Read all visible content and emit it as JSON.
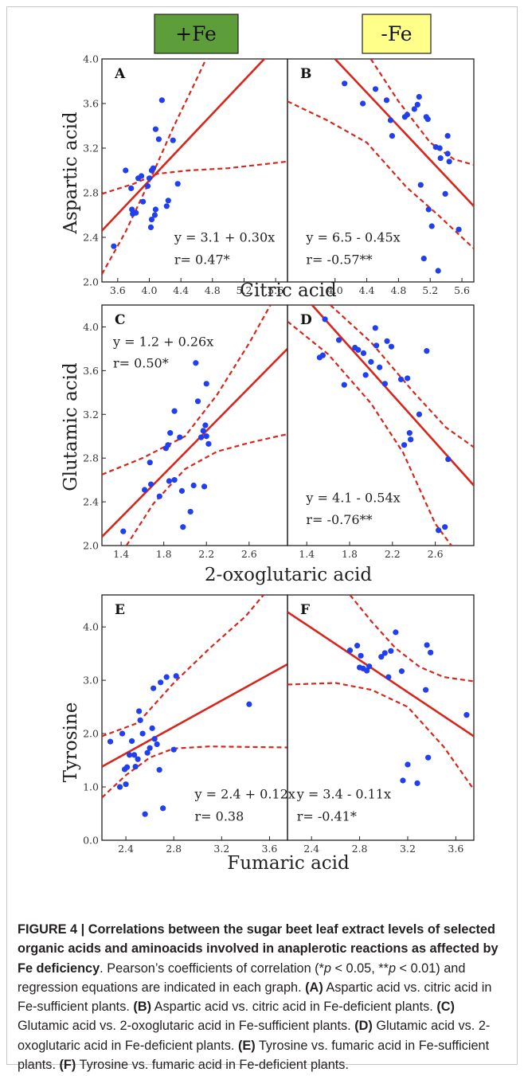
{
  "header": {
    "plus_fe": {
      "label": "+Fe",
      "color": "#5e9e3a"
    },
    "minus_fe": {
      "label": "-Fe",
      "color": "#ffff8a"
    }
  },
  "colors": {
    "points": "#1f3ff0",
    "fit": "#d9261c",
    "ci": "#d9261c"
  },
  "chart_data": [
    {
      "id": "A",
      "type": "scatter",
      "panel_label": "A",
      "xlabel": "Citric acid",
      "ylabel": "Aspartic acid",
      "xlim": [
        3.4,
        5.75
      ],
      "ylim": [
        2.0,
        4.0
      ],
      "xticks": [
        "3.6",
        "4.0",
        "4.4",
        "4.8",
        "5.2",
        "5.6"
      ],
      "yticks": [
        "2.0",
        "2.4",
        "2.8",
        "3.2",
        "3.6",
        "4.0"
      ],
      "equation": "y = 3.1 + 0.30x",
      "r_text": "r= 0.47*",
      "fit_line": [
        [
          3.4,
          2.46
        ],
        [
          5.75,
          4.22
        ]
      ],
      "ci_upper": [
        [
          3.4,
          2.07
        ],
        [
          3.7,
          2.45
        ],
        [
          4.0,
          2.9
        ],
        [
          4.3,
          3.38
        ],
        [
          4.6,
          3.82
        ],
        [
          4.85,
          4.2
        ]
      ],
      "ci_lower": [
        [
          3.4,
          2.79
        ],
        [
          3.8,
          2.88
        ],
        [
          4.1,
          2.97
        ],
        [
          4.5,
          3.0
        ],
        [
          5.0,
          3.02
        ],
        [
          5.75,
          3.08
        ]
      ],
      "points": [
        [
          3.55,
          2.32
        ],
        [
          3.7,
          3.0
        ],
        [
          3.77,
          2.84
        ],
        [
          3.78,
          2.65
        ],
        [
          3.79,
          2.61
        ],
        [
          3.83,
          2.62
        ],
        [
          3.86,
          2.93
        ],
        [
          3.9,
          2.95
        ],
        [
          3.92,
          2.72
        ],
        [
          3.98,
          2.86
        ],
        [
          4.0,
          2.93
        ],
        [
          4.02,
          2.49
        ],
        [
          4.03,
          2.56
        ],
        [
          4.03,
          3.0
        ],
        [
          4.05,
          3.02
        ],
        [
          4.07,
          2.6
        ],
        [
          4.08,
          2.65
        ],
        [
          4.08,
          3.37
        ],
        [
          4.12,
          3.28
        ],
        [
          4.16,
          3.63
        ],
        [
          4.22,
          2.68
        ],
        [
          4.24,
          2.73
        ],
        [
          4.3,
          3.27
        ],
        [
          4.36,
          2.88
        ]
      ]
    },
    {
      "id": "B",
      "type": "scatter",
      "panel_label": "B",
      "xlabel": "",
      "ylabel": "",
      "xlim": [
        3.4,
        5.75
      ],
      "ylim": [
        2.0,
        4.0
      ],
      "xticks": [
        "4.0",
        "4.4",
        "4.8",
        "5.2",
        "5.6"
      ],
      "yticks": [],
      "equation": "y = 6.5 - 0.45x",
      "r_text": "r= -0.57**",
      "fit_line": [
        [
          4.0,
          4.0
        ],
        [
          5.75,
          2.68
        ]
      ],
      "ci_upper": [
        [
          4.45,
          4.0
        ],
        [
          4.8,
          3.62
        ],
        [
          5.2,
          3.25
        ],
        [
          5.5,
          3.1
        ],
        [
          5.75,
          3.05
        ]
      ],
      "ci_lower": [
        [
          3.4,
          3.62
        ],
        [
          3.9,
          3.45
        ],
        [
          4.4,
          3.25
        ],
        [
          4.9,
          2.85
        ],
        [
          5.3,
          2.6
        ],
        [
          5.75,
          2.3
        ]
      ],
      "points": [
        [
          4.12,
          3.78
        ],
        [
          4.35,
          3.6
        ],
        [
          4.51,
          3.73
        ],
        [
          4.65,
          3.63
        ],
        [
          4.7,
          3.45
        ],
        [
          4.72,
          3.31
        ],
        [
          4.88,
          3.48
        ],
        [
          4.91,
          3.5
        ],
        [
          5.0,
          3.55
        ],
        [
          5.04,
          3.59
        ],
        [
          5.06,
          3.66
        ],
        [
          5.08,
          2.87
        ],
        [
          5.12,
          2.21
        ],
        [
          5.15,
          3.48
        ],
        [
          5.17,
          3.46
        ],
        [
          5.18,
          2.65
        ],
        [
          5.22,
          2.5
        ],
        [
          5.27,
          3.21
        ],
        [
          5.3,
          2.1
        ],
        [
          5.32,
          3.2
        ],
        [
          5.33,
          3.11
        ],
        [
          5.39,
          2.79
        ],
        [
          5.42,
          3.31
        ],
        [
          5.42,
          3.15
        ],
        [
          5.44,
          3.08
        ],
        [
          5.56,
          2.47
        ]
      ]
    },
    {
      "id": "C",
      "type": "scatter",
      "panel_label": "C",
      "xlabel": "2-oxoglutaric acid",
      "ylabel": "Glutamic acid",
      "xlim": [
        1.22,
        2.96
      ],
      "ylim": [
        2.0,
        4.2
      ],
      "xticks": [
        "1.4",
        "1.8",
        "2.2",
        "2.6"
      ],
      "yticks": [
        "2.0",
        "2.4",
        "2.8",
        "3.2",
        "3.6",
        "4.0"
      ],
      "equation": "y = 1.2 + 0.26x",
      "r_text": "r= 0.50*",
      "fit_line": [
        [
          1.22,
          2.08
        ],
        [
          2.96,
          3.8
        ]
      ],
      "ci_upper": [
        [
          1.22,
          2.65
        ],
        [
          1.6,
          2.8
        ],
        [
          2.0,
          3.0
        ],
        [
          2.3,
          3.38
        ],
        [
          2.6,
          3.85
        ],
        [
          2.8,
          4.2
        ]
      ],
      "ci_lower": [
        [
          1.45,
          2.0
        ],
        [
          1.7,
          2.38
        ],
        [
          2.0,
          2.7
        ],
        [
          2.3,
          2.86
        ],
        [
          2.6,
          2.94
        ],
        [
          2.96,
          3.02
        ]
      ],
      "points": [
        [
          1.42,
          2.13
        ],
        [
          1.62,
          2.51
        ],
        [
          1.67,
          2.76
        ],
        [
          1.68,
          2.56
        ],
        [
          1.76,
          2.45
        ],
        [
          1.82,
          2.89
        ],
        [
          1.84,
          2.92
        ],
        [
          1.85,
          2.59
        ],
        [
          1.86,
          3.03
        ],
        [
          1.9,
          2.6
        ],
        [
          1.9,
          3.23
        ],
        [
          1.95,
          2.99
        ],
        [
          1.97,
          2.5
        ],
        [
          1.98,
          2.17
        ],
        [
          2.05,
          2.31
        ],
        [
          2.08,
          2.55
        ],
        [
          2.1,
          3.67
        ],
        [
          2.12,
          3.32
        ],
        [
          2.15,
          2.99
        ],
        [
          2.17,
          3.05
        ],
        [
          2.18,
          2.54
        ],
        [
          2.19,
          3.1
        ],
        [
          2.2,
          3.48
        ],
        [
          2.2,
          3.0
        ],
        [
          2.22,
          2.93
        ]
      ]
    },
    {
      "id": "D",
      "type": "scatter",
      "panel_label": "D",
      "xlabel": "",
      "ylabel": "",
      "xlim": [
        1.22,
        2.96
      ],
      "ylim": [
        2.0,
        4.2
      ],
      "xticks": [
        "1.4",
        "1.8",
        "2.2",
        "2.6"
      ],
      "yticks": [],
      "equation": "y = 4.1 - 0.54x",
      "r_text": "r= -0.76**",
      "fit_line": [
        [
          1.45,
          4.2
        ],
        [
          2.96,
          2.55
        ]
      ],
      "ci_upper": [
        [
          1.62,
          4.2
        ],
        [
          2.0,
          3.86
        ],
        [
          2.4,
          3.4
        ],
        [
          2.7,
          3.08
        ],
        [
          2.96,
          2.9
        ]
      ],
      "ci_lower": [
        [
          1.22,
          4.05
        ],
        [
          1.6,
          3.75
        ],
        [
          2.0,
          3.3
        ],
        [
          2.3,
          2.85
        ],
        [
          2.6,
          2.2
        ],
        [
          2.75,
          2.0
        ]
      ],
      "points": [
        [
          1.52,
          3.72
        ],
        [
          1.55,
          3.74
        ],
        [
          1.57,
          4.07
        ],
        [
          1.7,
          3.88
        ],
        [
          1.75,
          3.47
        ],
        [
          1.85,
          3.81
        ],
        [
          1.88,
          3.79
        ],
        [
          1.93,
          3.76
        ],
        [
          1.95,
          3.56
        ],
        [
          2.0,
          3.68
        ],
        [
          2.04,
          3.99
        ],
        [
          2.05,
          3.83
        ],
        [
          2.08,
          3.63
        ],
        [
          2.13,
          3.48
        ],
        [
          2.15,
          3.87
        ],
        [
          2.19,
          3.82
        ],
        [
          2.28,
          3.52
        ],
        [
          2.31,
          2.92
        ],
        [
          2.34,
          3.53
        ],
        [
          2.36,
          3.03
        ],
        [
          2.37,
          2.97
        ],
        [
          2.45,
          3.2
        ],
        [
          2.52,
          3.78
        ],
        [
          2.63,
          2.14
        ],
        [
          2.69,
          2.17
        ],
        [
          2.72,
          2.79
        ]
      ]
    },
    {
      "id": "E",
      "type": "scatter",
      "panel_label": "E",
      "xlabel": "Fumaric acid",
      "ylabel": "Tyrosine",
      "xlim": [
        2.2,
        3.75
      ],
      "ylim": [
        0.0,
        4.6
      ],
      "xticks": [
        "2.4",
        "2.8",
        "3.2",
        "3.6"
      ],
      "yticks": [
        "0.0",
        "1.0",
        "2.0",
        "3.0",
        "4.0"
      ],
      "equation": "y = 2.4 + 0.12x",
      "r_text": "r= 0.38",
      "fit_line": [
        [
          2.2,
          1.38
        ],
        [
          3.75,
          3.3
        ]
      ],
      "ci_upper": [
        [
          2.2,
          1.95
        ],
        [
          2.5,
          2.2
        ],
        [
          2.8,
          2.95
        ],
        [
          3.1,
          3.6
        ],
        [
          3.4,
          4.2
        ],
        [
          3.55,
          4.6
        ]
      ],
      "ci_lower": [
        [
          2.2,
          0.8
        ],
        [
          2.4,
          1.22
        ],
        [
          2.6,
          1.55
        ],
        [
          2.8,
          1.72
        ],
        [
          3.1,
          1.76
        ],
        [
          3.75,
          1.74
        ]
      ],
      "points": [
        [
          2.27,
          1.85
        ],
        [
          2.35,
          1.0
        ],
        [
          2.37,
          2.0
        ],
        [
          2.39,
          1.33
        ],
        [
          2.4,
          1.05
        ],
        [
          2.41,
          1.37
        ],
        [
          2.43,
          1.6
        ],
        [
          2.45,
          1.86
        ],
        [
          2.47,
          1.6
        ],
        [
          2.48,
          1.38
        ],
        [
          2.5,
          1.52
        ],
        [
          2.51,
          2.42
        ],
        [
          2.52,
          2.25
        ],
        [
          2.54,
          2.0
        ],
        [
          2.56,
          0.49
        ],
        [
          2.58,
          1.64
        ],
        [
          2.6,
          1.73
        ],
        [
          2.62,
          2.1
        ],
        [
          2.63,
          2.85
        ],
        [
          2.64,
          1.9
        ],
        [
          2.66,
          1.8
        ],
        [
          2.68,
          1.32
        ],
        [
          2.69,
          2.96
        ],
        [
          2.71,
          0.6
        ],
        [
          2.74,
          3.06
        ],
        [
          2.8,
          1.7
        ],
        [
          2.82,
          3.08
        ],
        [
          3.43,
          2.55
        ]
      ]
    },
    {
      "id": "F",
      "type": "scatter",
      "panel_label": "F",
      "xlabel": "",
      "ylabel": "",
      "xlim": [
        2.2,
        3.75
      ],
      "ylim": [
        0.0,
        4.6
      ],
      "xticks": [
        "2.4",
        "2.8",
        "3.2",
        "3.6"
      ],
      "yticks": [],
      "equation": "y = 3.4 - 0.11x",
      "r_text": "r= -0.41*",
      "fit_line": [
        [
          2.2,
          4.28
        ],
        [
          3.75,
          1.95
        ]
      ],
      "ci_upper": [
        [
          2.72,
          4.6
        ],
        [
          2.9,
          4.1
        ],
        [
          3.1,
          3.6
        ],
        [
          3.3,
          3.25
        ],
        [
          3.5,
          3.06
        ],
        [
          3.75,
          2.98
        ]
      ],
      "ci_lower": [
        [
          2.2,
          2.92
        ],
        [
          2.6,
          2.95
        ],
        [
          2.9,
          2.82
        ],
        [
          3.2,
          2.5
        ],
        [
          3.5,
          1.75
        ],
        [
          3.75,
          0.95
        ]
      ],
      "points": [
        [
          2.72,
          3.56
        ],
        [
          2.78,
          3.65
        ],
        [
          2.8,
          3.24
        ],
        [
          2.81,
          3.46
        ],
        [
          2.83,
          3.22
        ],
        [
          2.86,
          3.18
        ],
        [
          2.88,
          3.26
        ],
        [
          2.98,
          3.44
        ],
        [
          3.01,
          3.51
        ],
        [
          3.04,
          3.06
        ],
        [
          3.06,
          3.55
        ],
        [
          3.1,
          3.9
        ],
        [
          3.15,
          3.17
        ],
        [
          3.16,
          1.12
        ],
        [
          3.2,
          1.42
        ],
        [
          3.28,
          1.07
        ],
        [
          3.35,
          2.82
        ],
        [
          3.36,
          3.66
        ],
        [
          3.37,
          1.55
        ],
        [
          3.39,
          3.52
        ],
        [
          3.69,
          2.35
        ]
      ]
    }
  ],
  "caption": {
    "title": "FIGURE 4 | Correlations between the sugar beet leaf extract levels of selected organic acids and aminoacids involved in anaplerotic reactions as affected by Fe deficiency",
    "intro": ". Pearson’s coefficients of correlation (*",
    "p1": "p",
    "mid1": " < 0.05, **",
    "p2": "p",
    "mid2": " < 0.01) and regression equations are indicated in each graph. ",
    "items": [
      {
        "label": "(A)",
        "text": " Aspartic acid vs. citric acid in Fe-sufficient plants. "
      },
      {
        "label": "(B)",
        "text": " Aspartic acid vs. citric acid in Fe-deficient plants. "
      },
      {
        "label": "(C)",
        "text": " Glutamic acid vs. 2-oxoglutaric acid in Fe-sufficient plants. "
      },
      {
        "label": "(D)",
        "text": " Glutamic acid vs. 2-oxoglutaric acid in Fe-deficient plants. "
      },
      {
        "label": "(E)",
        "text": " Tyrosine vs. fumaric acid in Fe-sufficient plants. "
      },
      {
        "label": "(F)",
        "text": " Tyrosine vs. fumaric acid in Fe-deficient plants."
      }
    ]
  }
}
